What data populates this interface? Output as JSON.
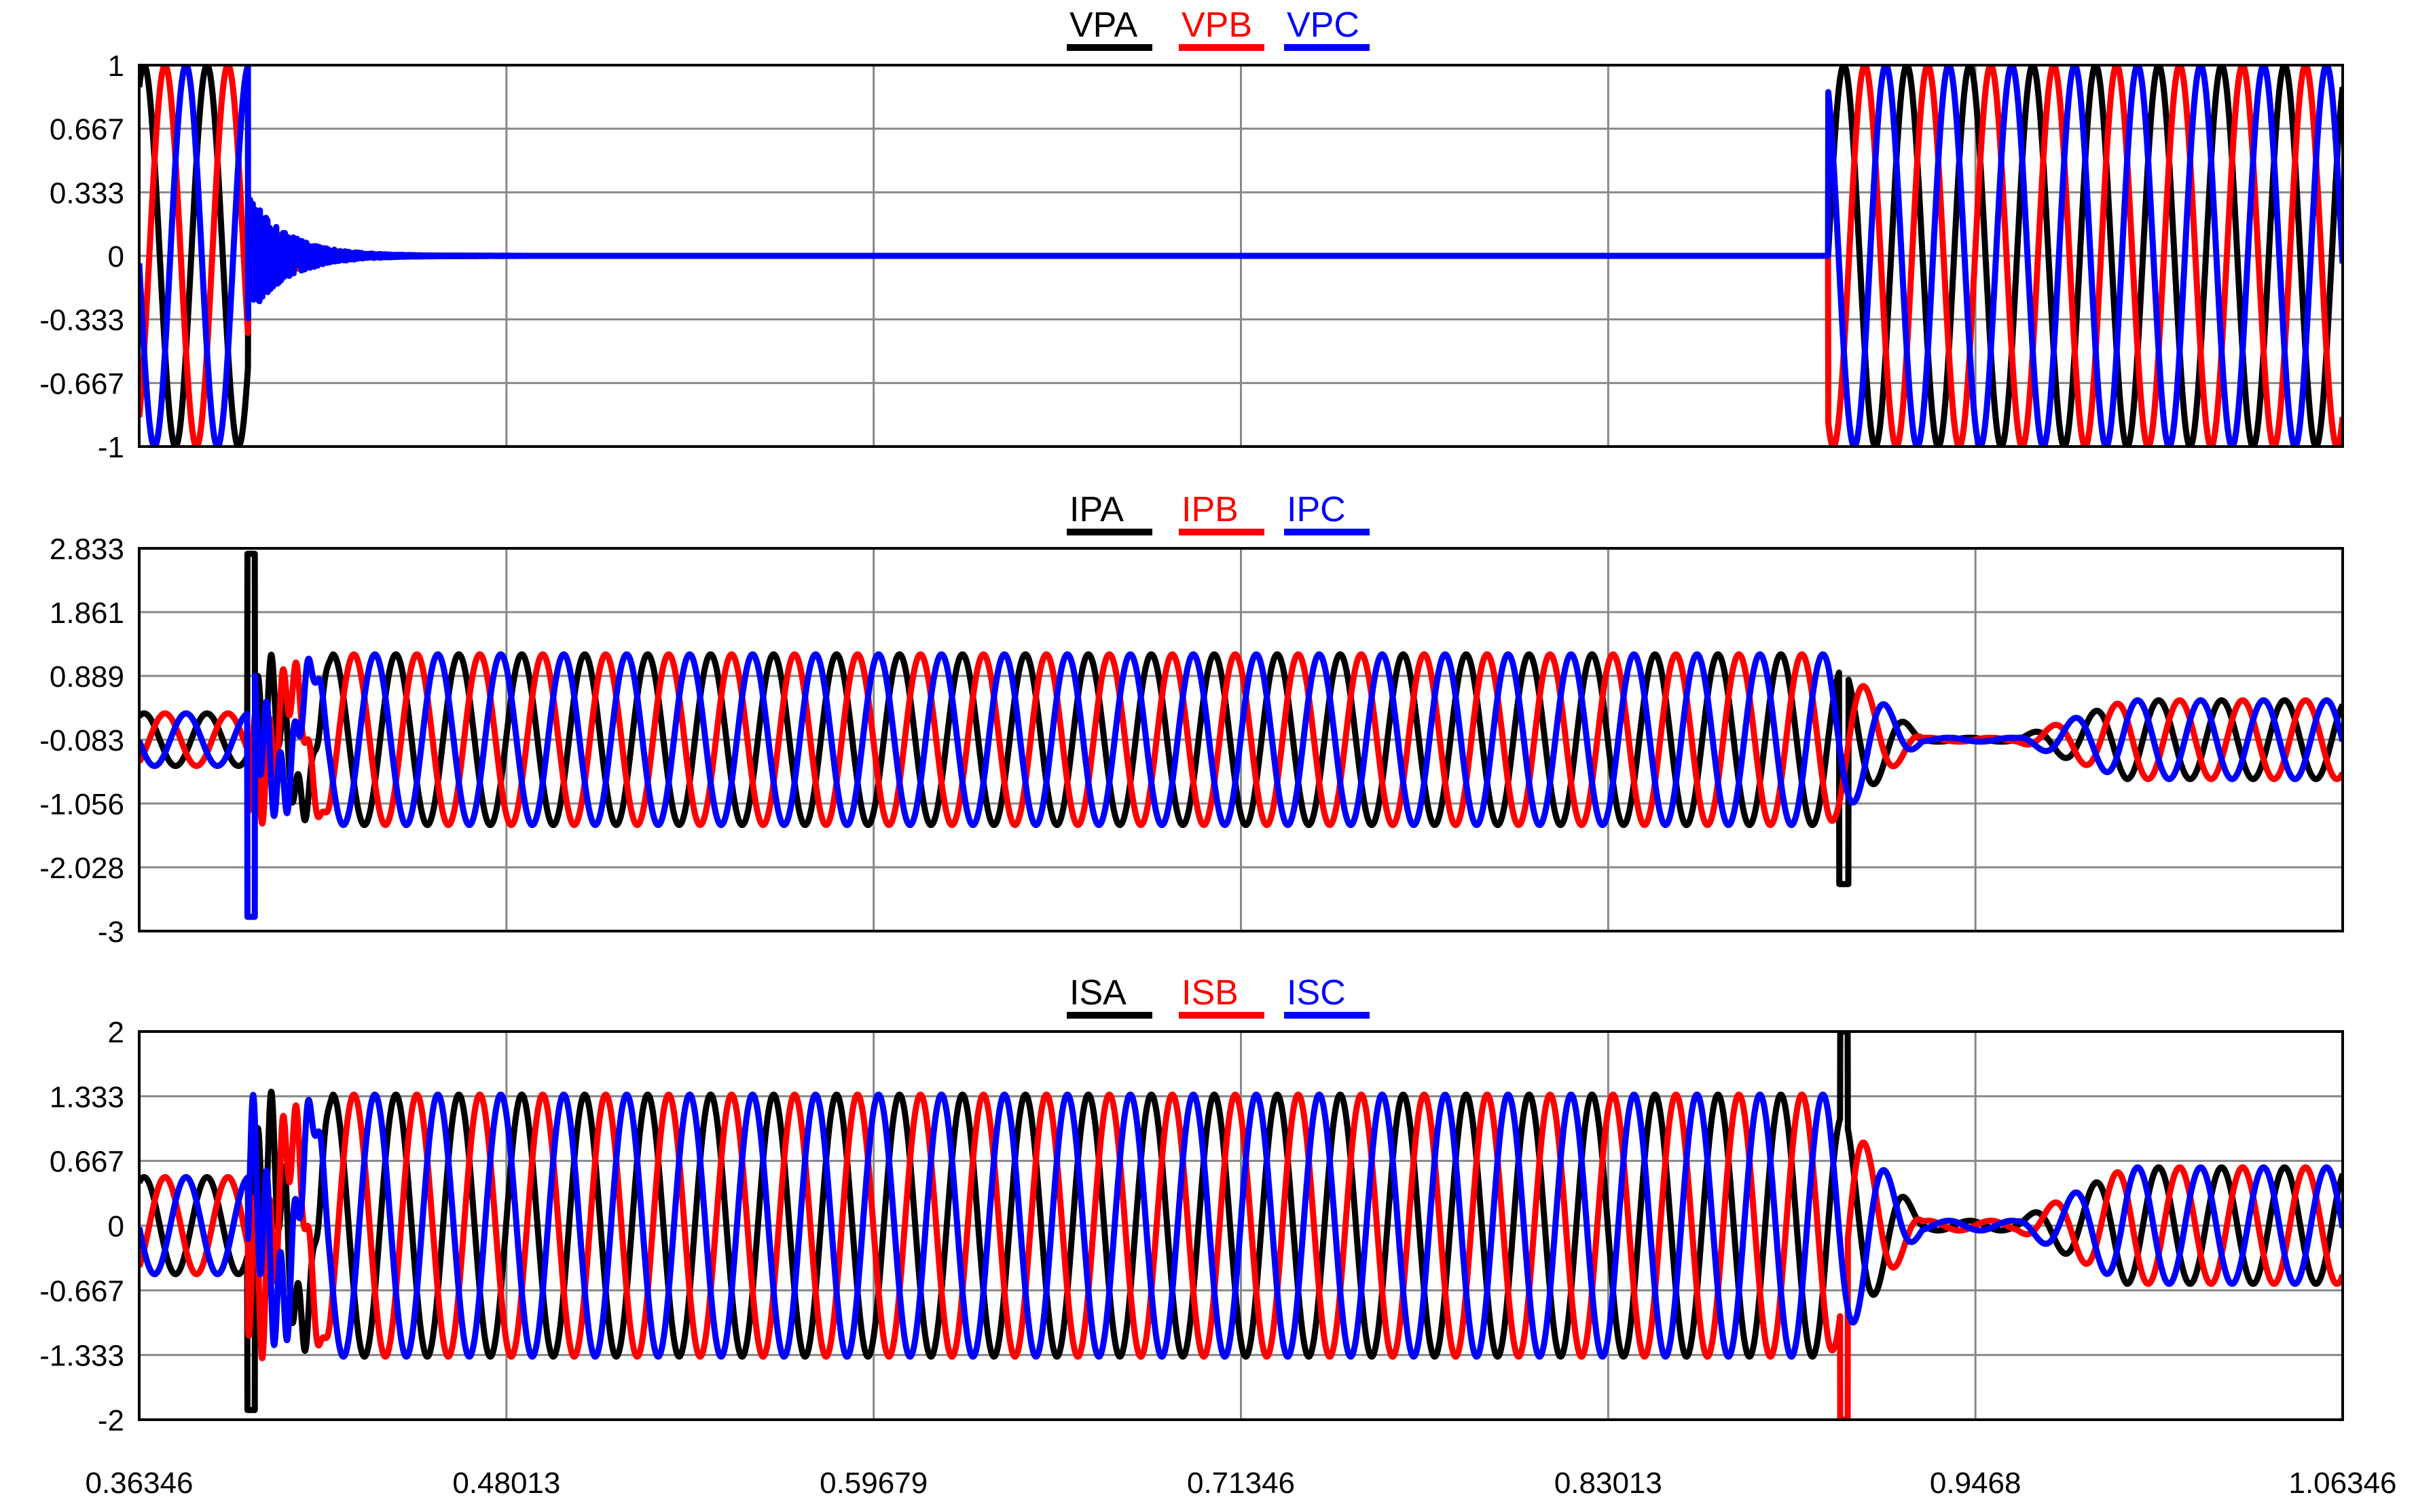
{
  "colors": {
    "phase_a": "#000000",
    "phase_b": "#ff0000",
    "phase_c": "#0000ff",
    "grid": "#888888",
    "axis": "#000000"
  },
  "x_axis": {
    "range": [
      0.36346,
      1.06346
    ],
    "ticks": [
      0.36346,
      0.48013,
      0.59679,
      0.71346,
      0.83013,
      0.9468,
      1.06346
    ],
    "tick_labels": [
      "0.36346",
      "0.48013",
      "0.59679",
      "0.71346",
      "0.83013",
      "0.9468",
      "1.06346"
    ]
  },
  "chart_data": [
    {
      "type": "line",
      "ylim": [
        -1,
        1
      ],
      "y_ticks": [
        1,
        0.667,
        0.333,
        0,
        -0.333,
        -0.667,
        -1
      ],
      "y_tick_labels": [
        "1",
        "0.667",
        "0.333",
        "0",
        "-0.333",
        "-0.667",
        "-1"
      ],
      "legend": "top-center",
      "grid": true,
      "series": [
        {
          "name": "VPA",
          "color": "#000000",
          "phase_deg": 0
        },
        {
          "name": "VPB",
          "color": "#ff0000",
          "phase_deg": -120
        },
        {
          "name": "VPC",
          "color": "#0000ff",
          "phase_deg": 120
        }
      ],
      "frequency_hz": 50,
      "events": [
        {
          "x_from": 0.36346,
          "x_to": 0.398,
          "amplitude": 1.0
        },
        {
          "x_from": 0.398,
          "x_to": 0.9,
          "amplitude": 0.0,
          "transient_decay_from": 0.33
        },
        {
          "x_from": 0.9,
          "x_to": 1.06346,
          "amplitude": 1.0
        }
      ]
    },
    {
      "type": "line",
      "ylim": [
        -3,
        2.833
      ],
      "y_ticks": [
        2.833,
        1.861,
        0.889,
        -0.083,
        -1.056,
        -2.028,
        -3
      ],
      "y_tick_labels": [
        "2.833",
        "1.861",
        "0.889",
        "-0.083",
        "-1.056",
        "-2.028",
        "-3"
      ],
      "legend": "top-center",
      "grid": true,
      "series": [
        {
          "name": "IPA",
          "color": "#000000",
          "phase_deg": 0
        },
        {
          "name": "IPB",
          "color": "#ff0000",
          "phase_deg": -120
        },
        {
          "name": "IPC",
          "color": "#0000ff",
          "phase_deg": 120
        }
      ],
      "frequency_hz": 50,
      "offset": -0.083,
      "events": [
        {
          "x_from": 0.36346,
          "x_to": 0.398,
          "amplitude": 0.4
        },
        {
          "x_from": 0.398,
          "x_to": 0.9,
          "amplitude": 1.3,
          "spike_at": 0.399,
          "spike_peak": 2.833,
          "spike_trough": -2.7
        },
        {
          "x_from": 0.9,
          "x_to": 0.96,
          "amplitude": 1.5,
          "decay_to": 0.03
        },
        {
          "x_from": 0.96,
          "x_to": 1.06346,
          "amplitude": 0.6
        }
      ]
    },
    {
      "type": "line",
      "ylim": [
        -2,
        2
      ],
      "y_ticks": [
        2,
        1.333,
        0.667,
        0,
        -0.667,
        -1.333,
        -2
      ],
      "y_tick_labels": [
        "2",
        "1.333",
        "0.667",
        "0",
        "-0.667",
        "-1.333",
        "-2"
      ],
      "legend": "top-center",
      "grid": true,
      "series": [
        {
          "name": "ISA",
          "color": "#000000",
          "phase_deg": 0
        },
        {
          "name": "ISB",
          "color": "#ff0000",
          "phase_deg": -120
        },
        {
          "name": "ISC",
          "color": "#0000ff",
          "phase_deg": 120
        }
      ],
      "frequency_hz": 50,
      "events": [
        {
          "x_from": 0.36346,
          "x_to": 0.398,
          "amplitude": 0.5
        },
        {
          "x_from": 0.398,
          "x_to": 0.9,
          "amplitude": 1.35,
          "spike_at": 0.399,
          "spike_trough": -1.9
        },
        {
          "x_from": 0.9,
          "x_to": 0.96,
          "amplitude": 1.6,
          "decay_to": 0.05,
          "spike_peak": 2.0
        },
        {
          "x_from": 0.96,
          "x_to": 1.06346,
          "amplitude": 0.6
        }
      ]
    }
  ]
}
